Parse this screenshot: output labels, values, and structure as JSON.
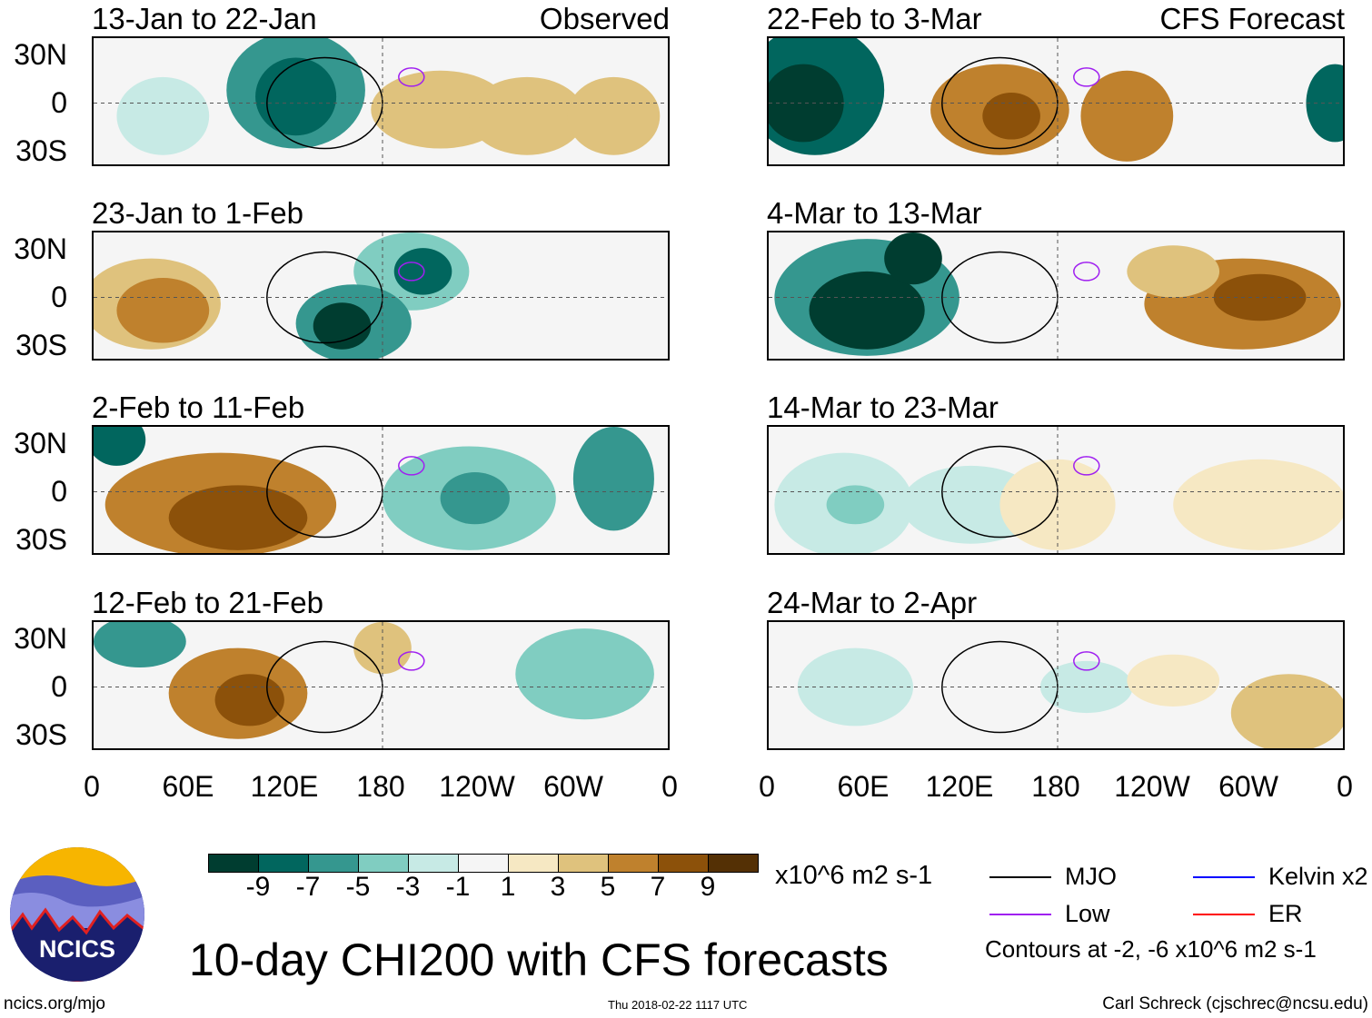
{
  "panels": [
    {
      "title": "13-Jan to 22-Jan",
      "tag": "Observed"
    },
    {
      "title": "23-Jan to 1-Feb"
    },
    {
      "title": "2-Feb to 11-Feb"
    },
    {
      "title": "12-Feb to 21-Feb"
    },
    {
      "title": "22-Feb to 3-Mar",
      "tag": "CFS Forecast"
    },
    {
      "title": "4-Mar to 13-Mar"
    },
    {
      "title": "14-Mar to 23-Mar"
    },
    {
      "title": "24-Mar to 2-Apr"
    }
  ],
  "lat_labels": [
    "30N",
    "0",
    "30S"
  ],
  "lon_labels": [
    "0",
    "60E",
    "120E",
    "180",
    "120W",
    "60W",
    "0"
  ],
  "colorbar": {
    "colors": [
      "#003d30",
      "#01665e",
      "#35978f",
      "#80cdc1",
      "#c7eae5",
      "#f5f5f5",
      "#f6e8c3",
      "#dfc27d",
      "#bf812d",
      "#8c510a",
      "#543005"
    ],
    "labels": [
      "-9",
      "-7",
      "-5",
      "-3",
      "-1",
      "1",
      "3",
      "5",
      "7",
      "9"
    ],
    "units": "x10^6 m2 s-1"
  },
  "legend": {
    "items": [
      {
        "label": "MJO",
        "color": "#000000"
      },
      {
        "label": "Kelvin x2",
        "color": "#0000ff"
      },
      {
        "label": "Low",
        "color": "#a020f0"
      },
      {
        "label": "ER",
        "color": "#ff0000"
      }
    ],
    "contours_note": "Contours at -2, -6 x10^6 m2 s-1"
  },
  "logo_text": "NCICS",
  "main_title": "10-day CHI200 with CFS forecasts",
  "footer": {
    "left": "ncics.org/mjo",
    "center": "Thu 2018-02-22 1117 UTC",
    "right": "Carl Schreck (cjschrec@ncsu.edu)"
  }
}
